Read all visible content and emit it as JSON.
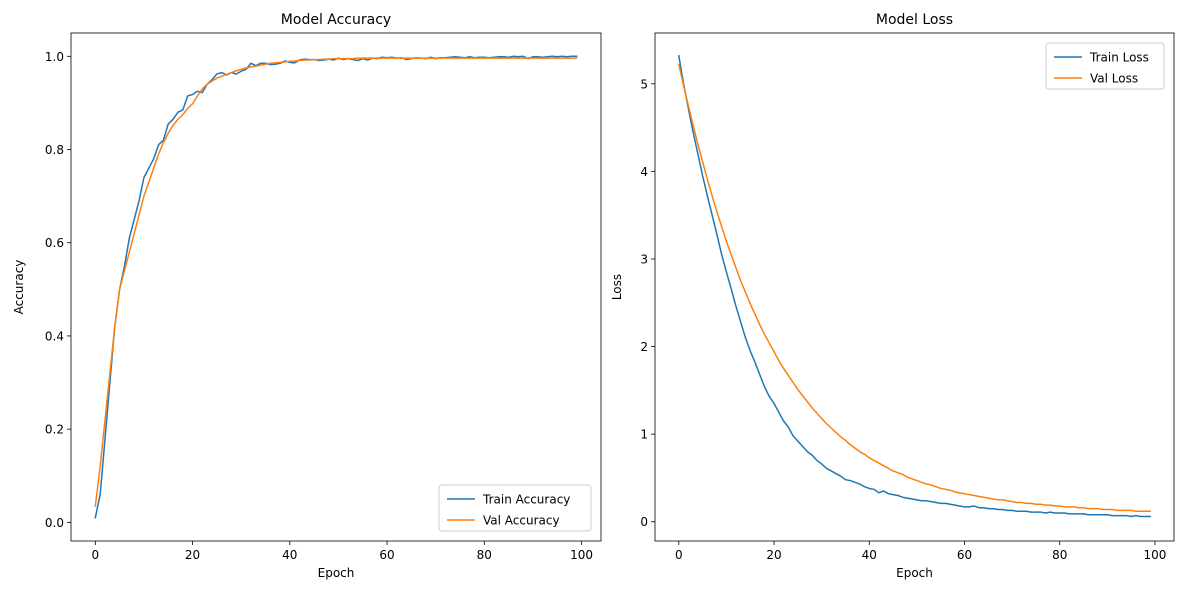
{
  "colors": {
    "train": "#1f77b4",
    "val": "#ff7f0e"
  },
  "chart_data": [
    {
      "type": "line",
      "title": "Model Accuracy",
      "xlabel": "Epoch",
      "ylabel": "Accuracy",
      "xlim": [
        -5,
        104
      ],
      "ylim": [
        -0.04,
        1.05
      ],
      "xticks": [
        0,
        20,
        40,
        60,
        80,
        100
      ],
      "yticks": [
        0.0,
        0.2,
        0.4,
        0.6,
        0.8,
        1.0
      ],
      "xtick_labels": [
        "0",
        "20",
        "40",
        "60",
        "80",
        "100"
      ],
      "ytick_labels": [
        "0.0",
        "0.2",
        "0.4",
        "0.6",
        "0.8",
        "1.0"
      ],
      "legend_position": "lower-right",
      "grid": false,
      "series": [
        {
          "name": "Train Accuracy",
          "color": "#1f77b4",
          "x": [
            0,
            1,
            2,
            3,
            4,
            5,
            6,
            7,
            8,
            9,
            10,
            11,
            12,
            13,
            14,
            15,
            16,
            17,
            18,
            19,
            20,
            21,
            22,
            23,
            24,
            25,
            26,
            27,
            28,
            29,
            30,
            31,
            32,
            33,
            34,
            35,
            36,
            37,
            38,
            39,
            40,
            41,
            42,
            43,
            44,
            45,
            46,
            47,
            48,
            49,
            50,
            51,
            52,
            53,
            54,
            55,
            56,
            57,
            58,
            59,
            60,
            61,
            62,
            63,
            64,
            65,
            66,
            67,
            68,
            69,
            70,
            71,
            72,
            73,
            74,
            75,
            76,
            77,
            78,
            79,
            80,
            81,
            82,
            83,
            84,
            85,
            86,
            87,
            88,
            89,
            90,
            91,
            92,
            93,
            94,
            95,
            96,
            97,
            98,
            99
          ],
          "y": [
            0.01,
            0.06,
            0.18,
            0.3,
            0.42,
            0.5,
            0.55,
            0.61,
            0.65,
            0.69,
            0.74,
            0.76,
            0.78,
            0.81,
            0.82,
            0.855,
            0.865,
            0.88,
            0.885,
            0.915,
            0.918,
            0.925,
            0.922,
            0.94,
            0.95,
            0.962,
            0.965,
            0.96,
            0.965,
            0.962,
            0.968,
            0.972,
            0.985,
            0.98,
            0.985,
            0.985,
            0.982,
            0.983,
            0.985,
            0.99,
            0.987,
            0.986,
            0.992,
            0.994,
            0.993,
            0.993,
            0.991,
            0.992,
            0.994,
            0.992,
            0.996,
            0.993,
            0.995,
            0.993,
            0.991,
            0.995,
            0.992,
            0.996,
            0.995,
            0.998,
            0.997,
            0.998,
            0.996,
            0.997,
            0.993,
            0.995,
            0.997,
            0.996,
            0.995,
            0.998,
            0.995,
            0.997,
            0.997,
            0.998,
            0.999,
            0.998,
            0.997,
            0.999,
            0.997,
            0.998,
            0.998,
            0.997,
            0.998,
            0.999,
            0.999,
            0.998,
            1.0,
            0.999,
            1.0,
            0.995,
            0.999,
            0.999,
            0.998,
            0.999,
            1.0,
            0.999,
            1.0,
            0.999,
            1.0,
            1.0
          ]
        },
        {
          "name": "Val Accuracy",
          "color": "#ff7f0e",
          "x": [
            0,
            1,
            2,
            3,
            4,
            5,
            6,
            7,
            8,
            9,
            10,
            11,
            12,
            13,
            14,
            15,
            16,
            17,
            18,
            19,
            20,
            21,
            22,
            23,
            24,
            25,
            26,
            27,
            28,
            29,
            30,
            31,
            32,
            33,
            34,
            35,
            36,
            37,
            38,
            39,
            40,
            41,
            42,
            43,
            44,
            45,
            46,
            47,
            48,
            49,
            50,
            51,
            52,
            53,
            54,
            55,
            56,
            57,
            58,
            59,
            60,
            61,
            62,
            63,
            64,
            65,
            66,
            67,
            68,
            69,
            70,
            71,
            72,
            73,
            74,
            75,
            76,
            77,
            78,
            79,
            80,
            81,
            82,
            83,
            84,
            85,
            86,
            87,
            88,
            89,
            90,
            91,
            92,
            93,
            94,
            95,
            96,
            97,
            98,
            99
          ],
          "y": [
            0.035,
            0.12,
            0.22,
            0.32,
            0.42,
            0.5,
            0.54,
            0.58,
            0.62,
            0.66,
            0.7,
            0.73,
            0.76,
            0.79,
            0.815,
            0.835,
            0.852,
            0.865,
            0.875,
            0.888,
            0.898,
            0.915,
            0.93,
            0.94,
            0.947,
            0.953,
            0.957,
            0.961,
            0.965,
            0.969,
            0.972,
            0.975,
            0.977,
            0.979,
            0.981,
            0.983,
            0.985,
            0.986,
            0.987,
            0.988,
            0.989,
            0.99,
            0.991,
            0.992,
            0.992,
            0.993,
            0.993,
            0.994,
            0.994,
            0.995,
            0.995,
            0.995,
            0.995,
            0.995,
            0.996,
            0.996,
            0.996,
            0.996,
            0.996,
            0.996,
            0.996,
            0.996,
            0.996,
            0.996,
            0.996,
            0.996,
            0.996,
            0.996,
            0.996,
            0.996,
            0.996,
            0.996,
            0.996,
            0.996,
            0.996,
            0.996,
            0.996,
            0.996,
            0.996,
            0.996,
            0.996,
            0.996,
            0.996,
            0.996,
            0.996,
            0.996,
            0.996,
            0.996,
            0.996,
            0.996,
            0.996,
            0.996,
            0.996,
            0.996,
            0.996,
            0.996,
            0.996,
            0.996,
            0.996,
            0.996
          ]
        }
      ]
    },
    {
      "type": "line",
      "title": "Model Loss",
      "xlabel": "Epoch",
      "ylabel": "Loss",
      "xlim": [
        -5,
        104
      ],
      "ylim": [
        -0.22,
        5.58
      ],
      "xticks": [
        0,
        20,
        40,
        60,
        80,
        100
      ],
      "yticks": [
        0,
        1,
        2,
        3,
        4,
        5
      ],
      "xtick_labels": [
        "0",
        "20",
        "40",
        "60",
        "80",
        "100"
      ],
      "ytick_labels": [
        "0",
        "1",
        "2",
        "3",
        "4",
        "5"
      ],
      "legend_position": "upper-right",
      "grid": false,
      "series": [
        {
          "name": "Train Loss",
          "color": "#1f77b4",
          "x": [
            0,
            1,
            2,
            3,
            4,
            5,
            6,
            7,
            8,
            9,
            10,
            11,
            12,
            13,
            14,
            15,
            16,
            17,
            18,
            19,
            20,
            21,
            22,
            23,
            24,
            25,
            26,
            27,
            28,
            29,
            30,
            31,
            32,
            33,
            34,
            35,
            36,
            37,
            38,
            39,
            40,
            41,
            42,
            43,
            44,
            45,
            46,
            47,
            48,
            49,
            50,
            51,
            52,
            53,
            54,
            55,
            56,
            57,
            58,
            59,
            60,
            61,
            62,
            63,
            64,
            65,
            66,
            67,
            68,
            69,
            70,
            71,
            72,
            73,
            74,
            75,
            76,
            77,
            78,
            79,
            80,
            81,
            82,
            83,
            84,
            85,
            86,
            87,
            88,
            89,
            90,
            91,
            92,
            93,
            94,
            95,
            96,
            97,
            98,
            99
          ],
          "y": [
            5.32,
            5.0,
            4.72,
            4.45,
            4.2,
            3.95,
            3.72,
            3.5,
            3.28,
            3.05,
            2.85,
            2.66,
            2.46,
            2.28,
            2.1,
            1.95,
            1.82,
            1.68,
            1.54,
            1.43,
            1.35,
            1.25,
            1.15,
            1.08,
            0.98,
            0.92,
            0.86,
            0.8,
            0.76,
            0.7,
            0.66,
            0.61,
            0.58,
            0.55,
            0.52,
            0.48,
            0.47,
            0.45,
            0.43,
            0.4,
            0.38,
            0.37,
            0.33,
            0.35,
            0.32,
            0.31,
            0.3,
            0.28,
            0.27,
            0.26,
            0.25,
            0.24,
            0.24,
            0.23,
            0.22,
            0.21,
            0.21,
            0.2,
            0.19,
            0.18,
            0.17,
            0.17,
            0.18,
            0.16,
            0.16,
            0.15,
            0.15,
            0.14,
            0.14,
            0.13,
            0.13,
            0.12,
            0.12,
            0.12,
            0.11,
            0.11,
            0.11,
            0.1,
            0.11,
            0.1,
            0.1,
            0.1,
            0.09,
            0.09,
            0.09,
            0.09,
            0.08,
            0.08,
            0.08,
            0.08,
            0.08,
            0.07,
            0.07,
            0.07,
            0.07,
            0.06,
            0.07,
            0.06,
            0.06,
            0.06
          ]
        },
        {
          "name": "Val Loss",
          "color": "#ff7f0e",
          "x": [
            0,
            1,
            2,
            3,
            4,
            5,
            6,
            7,
            8,
            9,
            10,
            11,
            12,
            13,
            14,
            15,
            16,
            17,
            18,
            19,
            20,
            21,
            22,
            23,
            24,
            25,
            26,
            27,
            28,
            29,
            30,
            31,
            32,
            33,
            34,
            35,
            36,
            37,
            38,
            39,
            40,
            41,
            42,
            43,
            44,
            45,
            46,
            47,
            48,
            49,
            50,
            51,
            52,
            53,
            54,
            55,
            56,
            57,
            58,
            59,
            60,
            61,
            62,
            63,
            64,
            65,
            66,
            67,
            68,
            69,
            70,
            71,
            72,
            73,
            74,
            75,
            76,
            77,
            78,
            79,
            80,
            81,
            82,
            83,
            84,
            85,
            86,
            87,
            88,
            89,
            90,
            91,
            92,
            93,
            94,
            95,
            96,
            97,
            98,
            99
          ],
          "y": [
            5.22,
            4.98,
            4.75,
            4.53,
            4.31,
            4.11,
            3.91,
            3.72,
            3.54,
            3.37,
            3.2,
            3.05,
            2.9,
            2.75,
            2.62,
            2.49,
            2.37,
            2.25,
            2.14,
            2.04,
            1.94,
            1.84,
            1.75,
            1.67,
            1.59,
            1.51,
            1.44,
            1.37,
            1.3,
            1.24,
            1.18,
            1.12,
            1.07,
            1.02,
            0.97,
            0.93,
            0.88,
            0.84,
            0.8,
            0.77,
            0.73,
            0.7,
            0.67,
            0.64,
            0.61,
            0.58,
            0.56,
            0.54,
            0.51,
            0.49,
            0.47,
            0.45,
            0.43,
            0.42,
            0.4,
            0.38,
            0.37,
            0.36,
            0.34,
            0.33,
            0.32,
            0.31,
            0.3,
            0.29,
            0.28,
            0.27,
            0.26,
            0.25,
            0.25,
            0.24,
            0.23,
            0.22,
            0.22,
            0.21,
            0.21,
            0.2,
            0.2,
            0.19,
            0.19,
            0.18,
            0.18,
            0.17,
            0.17,
            0.17,
            0.16,
            0.16,
            0.15,
            0.15,
            0.15,
            0.14,
            0.14,
            0.14,
            0.13,
            0.13,
            0.13,
            0.13,
            0.12,
            0.12,
            0.12,
            0.12
          ]
        }
      ]
    }
  ]
}
